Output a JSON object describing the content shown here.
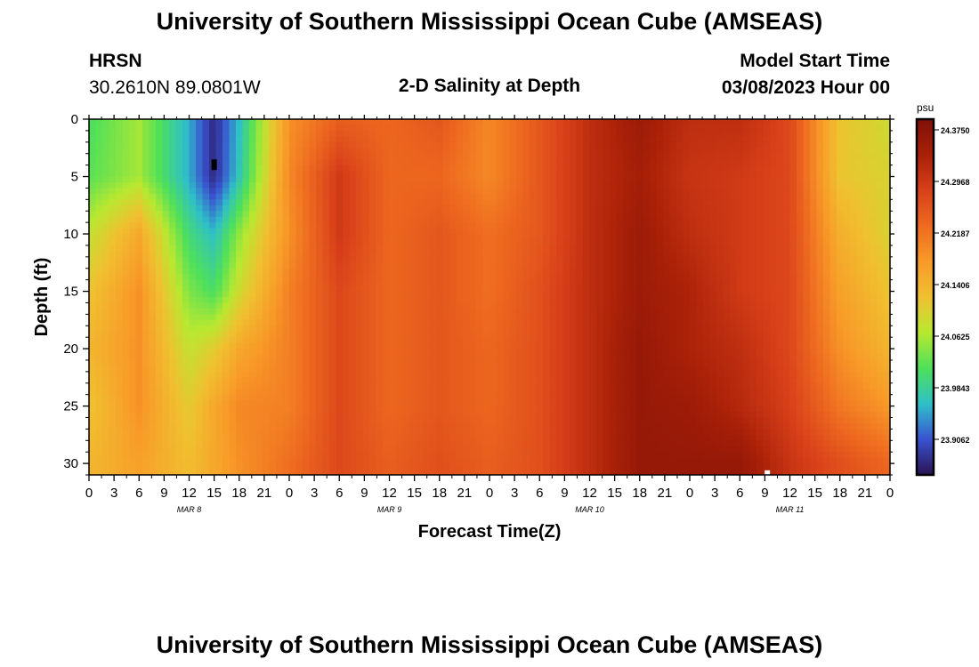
{
  "header": {
    "title": "University of Southern Mississippi Ocean Cube (AMSEAS)",
    "station": "HRSN",
    "coords": "30.2610N  89.0801W",
    "plot_title": "2-D Salinity at Depth",
    "model_start_label": "Model Start Time",
    "model_start_value": "03/08/2023 Hour 00",
    "footer_title": "University of Southern Mississippi Ocean Cube (AMSEAS)"
  },
  "colorbar": {
    "unit": "psu",
    "ticks": [
      "24.3750",
      "24.2968",
      "24.2187",
      "24.1406",
      "24.0625",
      "23.9843",
      "23.9062"
    ]
  },
  "colors": {
    "scale": [
      "#2a1352",
      "#3a52d0",
      "#2fc0c8",
      "#4ee05a",
      "#b8e830",
      "#f0c030",
      "#f89a28",
      "#ee6a20",
      "#d8401a",
      "#a82008",
      "#801008"
    ]
  },
  "chart_data": {
    "type": "heatmap",
    "title": "2-D Salinity at Depth",
    "xlabel": "Forecast Time(Z)",
    "ylabel": "Depth (ft)",
    "x_tick_labels": [
      "0",
      "3",
      "6",
      "9",
      "12",
      "15",
      "18",
      "21",
      "0",
      "3",
      "6",
      "9",
      "12",
      "15",
      "18",
      "21",
      "0",
      "3",
      "6",
      "9",
      "12",
      "15",
      "18",
      "21",
      "0",
      "3",
      "6",
      "9",
      "12",
      "15",
      "18",
      "21",
      "0"
    ],
    "date_labels": [
      "MAR 8",
      "MAR 9",
      "MAR 10",
      "MAR 11"
    ],
    "y_tick_labels": [
      "0",
      "5",
      "10",
      "15",
      "20",
      "25",
      "30"
    ],
    "xlim_hours": [
      0,
      96
    ],
    "ylim_ft": [
      0,
      31
    ],
    "y_inverted": true,
    "value_range_psu": [
      23.86,
      24.41
    ],
    "depth_levels_ft": [
      0,
      5,
      10,
      15,
      20,
      25,
      30
    ],
    "time_hours": [
      0,
      6,
      12,
      15,
      18,
      24,
      30,
      36,
      42,
      48,
      54,
      60,
      66,
      72,
      78,
      84,
      90,
      96
    ],
    "salinity_psu": [
      [
        24.02,
        24.07,
        23.96,
        23.88,
        23.97,
        24.2,
        24.26,
        24.25,
        24.27,
        24.21,
        24.27,
        24.33,
        24.37,
        24.33,
        24.33,
        24.29,
        24.13,
        24.1
      ],
      [
        24.03,
        24.07,
        23.96,
        23.88,
        23.98,
        24.21,
        24.31,
        24.25,
        24.25,
        24.21,
        24.27,
        24.33,
        24.36,
        24.32,
        24.31,
        24.29,
        24.13,
        24.11
      ],
      [
        24.09,
        24.17,
        24.01,
        23.97,
        24.06,
        24.2,
        24.31,
        24.25,
        24.27,
        24.24,
        24.27,
        24.33,
        24.37,
        24.33,
        24.31,
        24.29,
        24.16,
        24.11
      ],
      [
        24.13,
        24.2,
        24.05,
        24.02,
        24.1,
        24.22,
        24.29,
        24.25,
        24.27,
        24.24,
        24.28,
        24.33,
        24.37,
        24.35,
        24.31,
        24.29,
        24.18,
        24.13
      ],
      [
        24.15,
        24.2,
        24.09,
        24.12,
        24.17,
        24.22,
        24.29,
        24.25,
        24.27,
        24.25,
        24.28,
        24.33,
        24.38,
        24.35,
        24.33,
        24.29,
        24.2,
        24.15
      ],
      [
        24.13,
        24.2,
        24.12,
        24.17,
        24.21,
        24.22,
        24.29,
        24.25,
        24.27,
        24.25,
        24.28,
        24.33,
        24.38,
        24.37,
        24.34,
        24.3,
        24.23,
        24.19
      ],
      [
        24.15,
        24.18,
        24.14,
        24.17,
        24.2,
        24.24,
        24.29,
        24.26,
        24.28,
        24.26,
        24.28,
        24.33,
        24.38,
        24.38,
        24.38,
        24.32,
        24.28,
        24.25
      ]
    ]
  }
}
